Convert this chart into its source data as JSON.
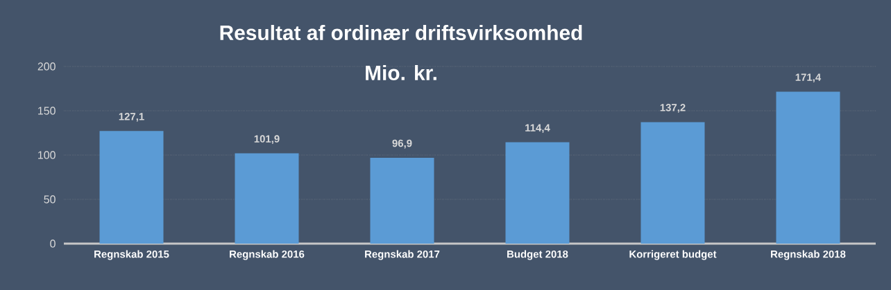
{
  "chart_data": {
    "type": "bar",
    "title": "Resultat af ordinær driftsvirksomhed",
    "subtitle": "Mio. kr.",
    "categories": [
      "Regnskab 2015",
      "Regnskab 2016",
      "Regnskab 2017",
      "Budget 2018",
      "Korrigeret budget",
      "Regnskab 2018"
    ],
    "values": [
      127.1,
      101.9,
      96.9,
      114.4,
      137.2,
      171.4
    ],
    "value_labels": [
      "127,1",
      "101,9",
      "96,9",
      "114,4",
      "137,2",
      "171,4"
    ],
    "color": "#5b9bd5",
    "ylim": [
      0,
      200
    ],
    "yticks": [
      0,
      50,
      100,
      150,
      200
    ],
    "grid": "y"
  }
}
